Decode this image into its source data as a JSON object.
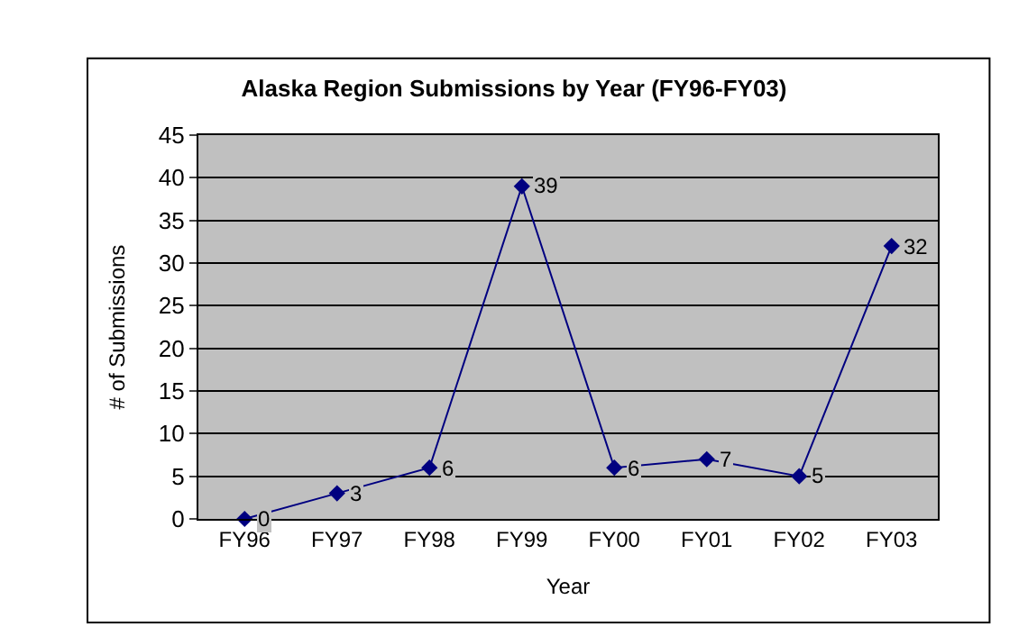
{
  "chart_data": {
    "type": "line",
    "title": "Alaska Region Submissions by Year (FY96-FY03)",
    "xlabel": "Year",
    "ylabel": "# of Submissions",
    "categories": [
      "FY96",
      "FY97",
      "FY98",
      "FY99",
      "FY00",
      "FY01",
      "FY02",
      "FY03"
    ],
    "series": [
      {
        "color": "#000080",
        "values": [
          0,
          3,
          6,
          39,
          6,
          7,
          5,
          32
        ]
      }
    ],
    "ylim": [
      0,
      45
    ],
    "yticks": [
      0,
      5,
      10,
      15,
      20,
      25,
      30,
      35,
      40,
      45
    ],
    "grid": "y",
    "marker": "diamond",
    "line_style": "solid",
    "data_labels": true
  }
}
